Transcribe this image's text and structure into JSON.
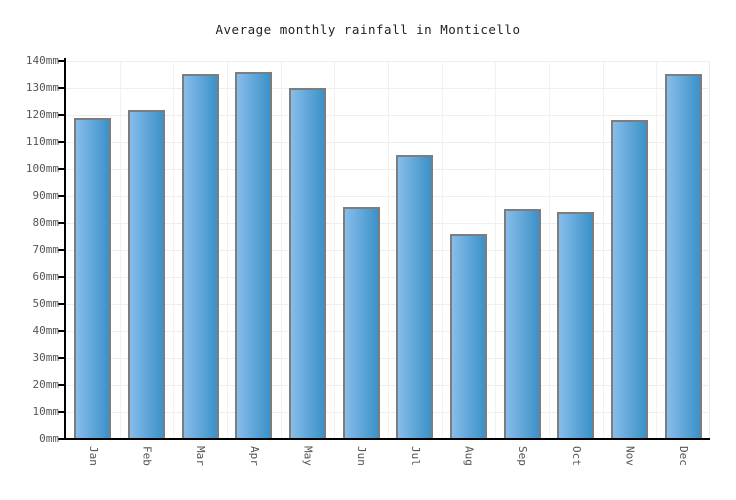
{
  "chart_data": {
    "type": "bar",
    "title": "Average monthly rainfall in Monticello",
    "unit": "mm",
    "categories": [
      "Jan",
      "Feb",
      "Mar",
      "Apr",
      "May",
      "Jun",
      "Jul",
      "Aug",
      "Sep",
      "Oct",
      "Nov",
      "Dec"
    ],
    "values": [
      119,
      122,
      135,
      136,
      130,
      86,
      105,
      76,
      85,
      84,
      118,
      135
    ],
    "xlabel": "",
    "ylabel": "",
    "ylim": [
      0,
      140
    ],
    "y_tick_step": 10,
    "y_tick_labels": [
      "0mm",
      "10mm",
      "20mm",
      "30mm",
      "40mm",
      "50mm",
      "60mm",
      "70mm",
      "80mm",
      "90mm",
      "100mm",
      "110mm",
      "120mm",
      "130mm",
      "140mm"
    ],
    "grid": true,
    "legend": "none",
    "colors": {
      "bar_gradient_left": "#87bde9",
      "bar_gradient_right": "#3b91c9",
      "bar_border": "#7d7d7d",
      "axis": "#000000",
      "gridline": "#eeeeee",
      "labels": "#555555",
      "title": "#222222",
      "background": "#ffffff"
    }
  }
}
